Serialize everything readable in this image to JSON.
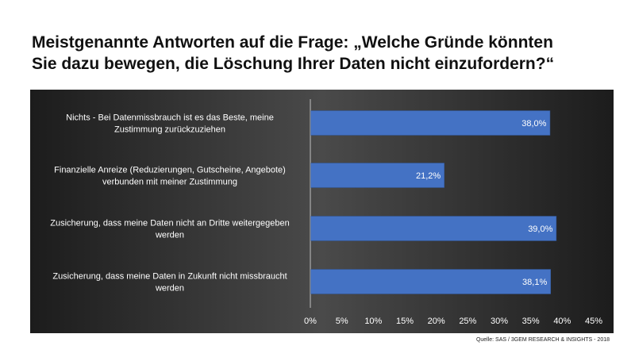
{
  "title_lines": [
    "Meistgenannte Antworten auf die Frage: „Welche Gründe könnten",
    "Sie dazu bewegen, die Löschung Ihrer Daten nicht einzufordern?“"
  ],
  "source": "Quelle: SAS / 3GEM RESEARCH & INSIGHTS - 2018",
  "colors": {
    "bar": "#4472c4",
    "background": "#3a3a3a"
  },
  "chart_data": {
    "type": "bar",
    "orientation": "horizontal",
    "title": "Meistgenannte Antworten auf die Frage: „Welche Gründe könnten Sie dazu bewegen, die Löschung Ihrer Daten nicht einzufordern?“",
    "categories": [
      [
        "Nichts - Bei Datenmissbrauch ist es das Beste, meine",
        "Zustimmung zurückzuziehen"
      ],
      [
        "Finanzielle Anreize (Reduzierungen, Gutscheine, Angebote)",
        "verbunden mit meiner Zustimmung"
      ],
      [
        "Zusicherung, dass meine Daten nicht an Dritte weitergegeben",
        "werden"
      ],
      [
        "Zusicherung, dass meine Daten in Zukunft nicht missbraucht",
        "werden"
      ]
    ],
    "values": [
      38.0,
      21.2,
      39.0,
      38.1
    ],
    "value_labels": [
      "38,0%",
      "21,2%",
      "39,0%",
      "38,1%"
    ],
    "xlim": [
      0,
      45
    ],
    "ticks": [
      "0%",
      "5%",
      "10%",
      "15%",
      "20%",
      "25%",
      "30%",
      "35%",
      "40%",
      "45%"
    ],
    "grid": false,
    "legend": false
  }
}
